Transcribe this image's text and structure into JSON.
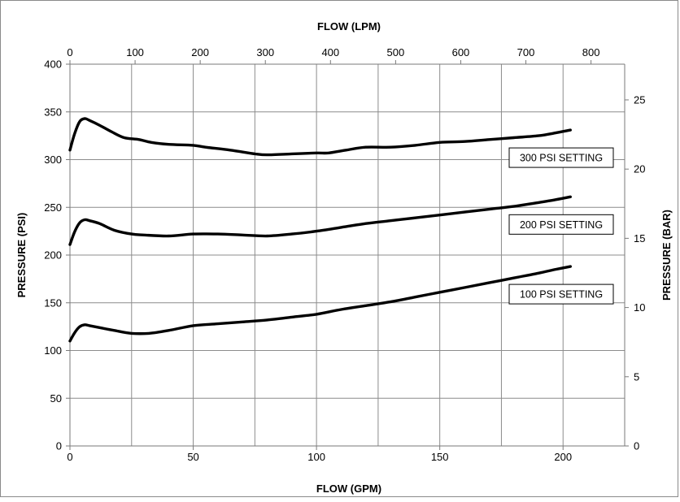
{
  "chart_data": {
    "type": "line",
    "x_bottom": {
      "label": "FLOW (GPM)",
      "range": [
        0,
        225
      ],
      "ticks": [
        0,
        50,
        100,
        150,
        200
      ],
      "minor_grid_step": 25
    },
    "x_top": {
      "label": "FLOW (LPM)",
      "range": [
        0,
        851.7
      ],
      "ticks": [
        0,
        100,
        200,
        300,
        400,
        500,
        600,
        700,
        800
      ]
    },
    "y_left": {
      "label": "PRESSURE (PSI)",
      "range": [
        0,
        400
      ],
      "ticks": [
        0,
        50,
        100,
        150,
        200,
        250,
        300,
        350,
        400
      ]
    },
    "y_right": {
      "label": "PRESSURE (BAR)",
      "range": [
        0,
        27.58
      ],
      "ticks": [
        0,
        5,
        10,
        15,
        20,
        25
      ]
    },
    "grid": true,
    "series": [
      {
        "name": "300 PSI SETTING",
        "color": "#000000",
        "points": [
          [
            0,
            310
          ],
          [
            2,
            328
          ],
          [
            4,
            340
          ],
          [
            6,
            343
          ],
          [
            8,
            341
          ],
          [
            12,
            336
          ],
          [
            17,
            329
          ],
          [
            22,
            323
          ],
          [
            28,
            321
          ],
          [
            33,
            318
          ],
          [
            40,
            316
          ],
          [
            50,
            315
          ],
          [
            55,
            313
          ],
          [
            65,
            310
          ],
          [
            75,
            306
          ],
          [
            80,
            305
          ],
          [
            90,
            306
          ],
          [
            100,
            307
          ],
          [
            105,
            307
          ],
          [
            112,
            310
          ],
          [
            120,
            313
          ],
          [
            130,
            313
          ],
          [
            140,
            315
          ],
          [
            150,
            318
          ],
          [
            160,
            319
          ],
          [
            170,
            321
          ],
          [
            180,
            323
          ],
          [
            190,
            325
          ],
          [
            197,
            328
          ],
          [
            203,
            331
          ]
        ]
      },
      {
        "name": "200 PSI SETTING",
        "color": "#000000",
        "points": [
          [
            0,
            211
          ],
          [
            2,
            225
          ],
          [
            4,
            234
          ],
          [
            6,
            237
          ],
          [
            8,
            236
          ],
          [
            12,
            233
          ],
          [
            18,
            226
          ],
          [
            25,
            222
          ],
          [
            30,
            221
          ],
          [
            40,
            220
          ],
          [
            50,
            222
          ],
          [
            60,
            222
          ],
          [
            70,
            221
          ],
          [
            80,
            220
          ],
          [
            90,
            222
          ],
          [
            100,
            225
          ],
          [
            110,
            229
          ],
          [
            120,
            233
          ],
          [
            130,
            236
          ],
          [
            140,
            239
          ],
          [
            150,
            242
          ],
          [
            160,
            245
          ],
          [
            170,
            248
          ],
          [
            180,
            251
          ],
          [
            190,
            255
          ],
          [
            197,
            258
          ],
          [
            203,
            261
          ]
        ]
      },
      {
        "name": "100 PSI SETTING",
        "color": "#000000",
        "points": [
          [
            0,
            110
          ],
          [
            2,
            119
          ],
          [
            4,
            125
          ],
          [
            6,
            127
          ],
          [
            8,
            126
          ],
          [
            12,
            124
          ],
          [
            18,
            121
          ],
          [
            25,
            118
          ],
          [
            32,
            118
          ],
          [
            40,
            121
          ],
          [
            50,
            126
          ],
          [
            60,
            128
          ],
          [
            70,
            130
          ],
          [
            80,
            132
          ],
          [
            90,
            135
          ],
          [
            100,
            138
          ],
          [
            110,
            143
          ],
          [
            120,
            147
          ],
          [
            130,
            151
          ],
          [
            140,
            156
          ],
          [
            150,
            161
          ],
          [
            160,
            166
          ],
          [
            170,
            171
          ],
          [
            180,
            176
          ],
          [
            190,
            181
          ],
          [
            197,
            185
          ],
          [
            203,
            188
          ]
        ]
      }
    ],
    "annotations": [
      {
        "text": "300 PSI SETTING",
        "series": 0
      },
      {
        "text": "200 PSI SETTING",
        "series": 1
      },
      {
        "text": "100 PSI SETTING",
        "series": 2
      }
    ]
  }
}
